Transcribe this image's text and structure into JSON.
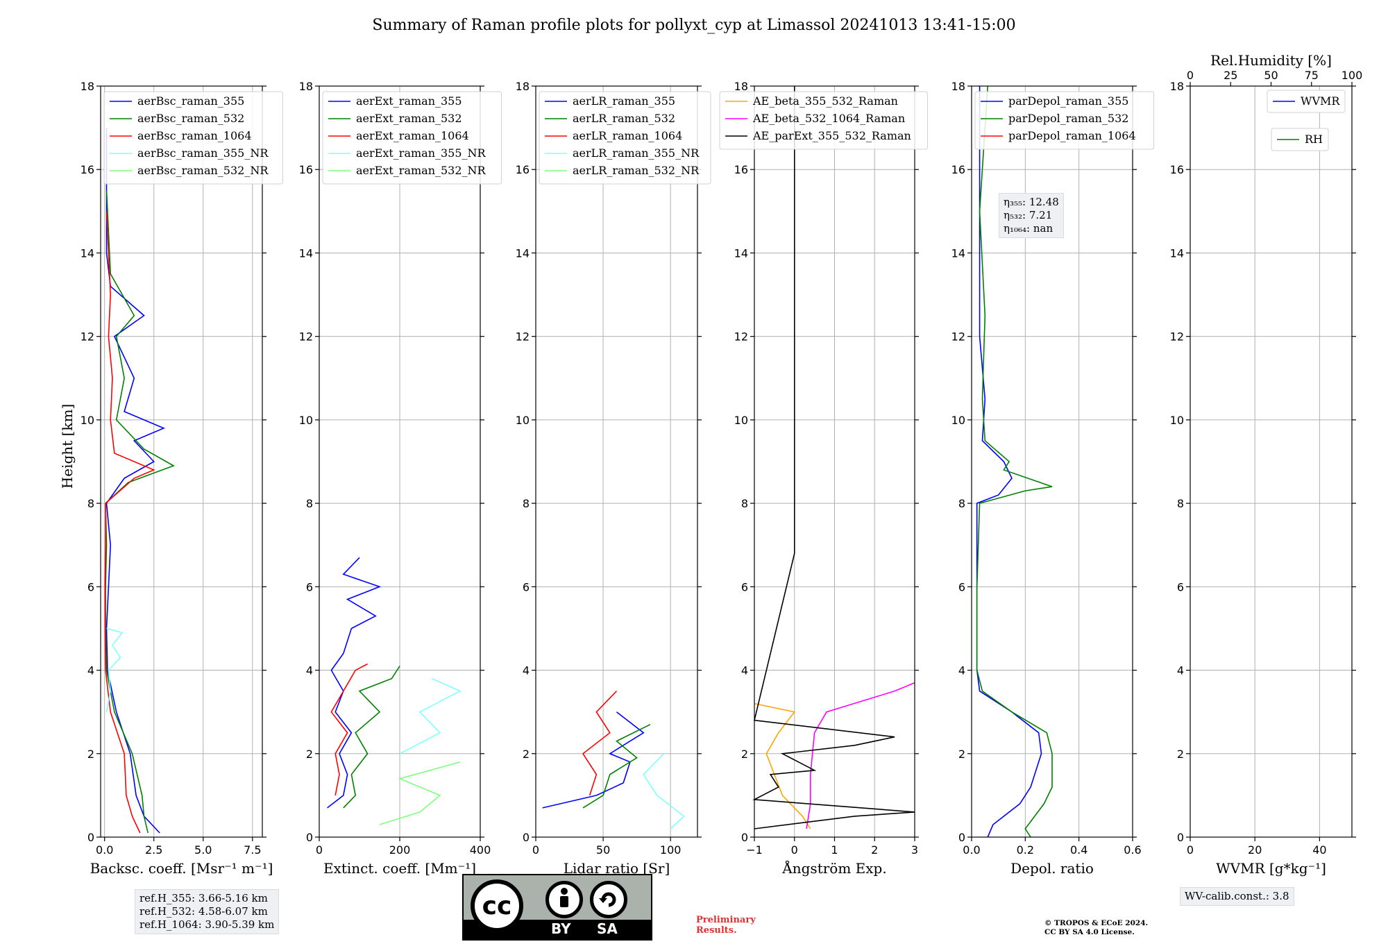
{
  "title": "Summary of Raman profile plots for pollyxt_cyp at Limassol 20241013 13:41-15:00",
  "y_label": "Height [km]",
  "ylim": [
    0,
    18
  ],
  "y_ticks": [
    "0",
    "2",
    "4",
    "6",
    "8",
    "10",
    "12",
    "14",
    "16",
    "18"
  ],
  "panels": [
    {
      "xlabel": "Backsc. coeff. [Msr⁻¹ m⁻¹]",
      "xlim": [
        -0.2,
        8
      ],
      "xticks": [
        0,
        2.5,
        5,
        7.5
      ],
      "xtick_labels": [
        "0.0",
        "2.5",
        "5.0",
        "7.5"
      ],
      "legend": [
        {
          "label": "aerBsc_raman_355",
          "color": "#0000ff"
        },
        {
          "label": "aerBsc_raman_532",
          "color": "#008000"
        },
        {
          "label": "aerBsc_raman_1064",
          "color": "#ff0000"
        },
        {
          "label": "aerBsc_raman_355_NR",
          "color": "#7fffff"
        },
        {
          "label": "aerBsc_raman_532_NR",
          "color": "#7fff7f"
        }
      ]
    },
    {
      "xlabel": "Extinct. coeff. [Mm⁻¹]",
      "xlim": [
        0,
        400
      ],
      "xticks": [
        0,
        200,
        400
      ],
      "xtick_labels": [
        "0",
        "200",
        "400"
      ],
      "legend": [
        {
          "label": "aerExt_raman_355",
          "color": "#0000ff"
        },
        {
          "label": "aerExt_raman_532",
          "color": "#008000"
        },
        {
          "label": "aerExt_raman_1064",
          "color": "#ff0000"
        },
        {
          "label": "aerExt_raman_355_NR",
          "color": "#7fffff"
        },
        {
          "label": "aerExt_raman_532_NR",
          "color": "#7fff7f"
        }
      ]
    },
    {
      "xlabel": "Lidar ratio [Sr]",
      "xlim": [
        0,
        120
      ],
      "xticks": [
        0,
        50,
        100
      ],
      "xtick_labels": [
        "0",
        "50",
        "100"
      ],
      "legend": [
        {
          "label": "aerLR_raman_355",
          "color": "#0000ff"
        },
        {
          "label": "aerLR_raman_532",
          "color": "#008000"
        },
        {
          "label": "aerLR_raman_1064",
          "color": "#ff0000"
        },
        {
          "label": "aerLR_raman_355_NR",
          "color": "#7fffff"
        },
        {
          "label": "aerLR_raman_532_NR",
          "color": "#7fff7f"
        }
      ]
    },
    {
      "xlabel": "Ångström Exp.",
      "xlim": [
        -1,
        3
      ],
      "xticks": [
        -1,
        0,
        1,
        2,
        3
      ],
      "xtick_labels": [
        "−1",
        "0",
        "1",
        "2",
        "3"
      ],
      "legend": [
        {
          "label": "AE_beta_355_532_Raman",
          "color": "#ffa500"
        },
        {
          "label": "AE_beta_532_1064_Raman",
          "color": "#ff00ff"
        },
        {
          "label": "AE_parExt_355_532_Raman",
          "color": "#000000"
        }
      ]
    },
    {
      "xlabel": "Depol. ratio",
      "xlim": [
        0,
        0.6
      ],
      "xticks": [
        0,
        0.2,
        0.4,
        0.6
      ],
      "xtick_labels": [
        "0.0",
        "0.2",
        "0.4",
        "0.6"
      ],
      "legend": [
        {
          "label": "parDepol_raman_355",
          "color": "#0000ff"
        },
        {
          "label": "parDepol_raman_532",
          "color": "#008000"
        },
        {
          "label": "parDepol_raman_1064",
          "color": "#ff0000"
        }
      ]
    },
    {
      "xlabel": "WVMR [g*kg⁻¹]",
      "xlim": [
        0,
        50
      ],
      "xticks": [
        0,
        20,
        40
      ],
      "xtick_labels": [
        "0",
        "20",
        "40"
      ],
      "top_label": "Rel.Humidity [%]",
      "top_xticks": [
        0,
        25,
        50,
        75,
        100
      ],
      "top_xtick_labels": [
        "0",
        "25",
        "50",
        "75",
        "100"
      ],
      "legend": [
        {
          "label": "WVMR",
          "color": "#0000ff"
        },
        {
          "label": "RH",
          "color": "#008000"
        }
      ]
    }
  ],
  "chart_data": {
    "type": "line",
    "title": "Summary of Raman profile plots for pollyxt_cyp at Limassol 20241013 13:41-15:00",
    "ylabel": "Height [km]",
    "ylim": [
      0,
      18
    ],
    "series": [
      {
        "name": "aerBsc_raman_355",
        "panel": 0,
        "color": "#0000ff",
        "points": [
          [
            2.8,
            0.1
          ],
          [
            2.0,
            0.5
          ],
          [
            1.6,
            1.0
          ],
          [
            1.3,
            2.0
          ],
          [
            0.6,
            3.0
          ],
          [
            0.15,
            4.0
          ],
          [
            0.1,
            5.0
          ],
          [
            0.2,
            6.0
          ],
          [
            0.3,
            7.0
          ],
          [
            0.1,
            8.0
          ],
          [
            1.0,
            8.6
          ],
          [
            2.5,
            9.0
          ],
          [
            1.5,
            9.5
          ],
          [
            3.0,
            9.8
          ],
          [
            1.0,
            10.2
          ],
          [
            1.5,
            11.0
          ],
          [
            1.0,
            11.5
          ],
          [
            0.5,
            12.0
          ],
          [
            2.0,
            12.5
          ],
          [
            0.3,
            13.2
          ],
          [
            0.1,
            14.0
          ],
          [
            0.1,
            15.0
          ],
          [
            0.1,
            16.0
          ],
          [
            0.1,
            17.0
          ]
        ]
      },
      {
        "name": "aerBsc_raman_532",
        "panel": 0,
        "color": "#008000",
        "points": [
          [
            2.2,
            0.1
          ],
          [
            2.0,
            0.5
          ],
          [
            1.9,
            1.0
          ],
          [
            1.4,
            2.0
          ],
          [
            0.5,
            3.0
          ],
          [
            0.1,
            4.0
          ],
          [
            0.05,
            5.0
          ],
          [
            0.05,
            6.0
          ],
          [
            0.1,
            7.0
          ],
          [
            0.05,
            8.0
          ],
          [
            1.2,
            8.5
          ],
          [
            3.5,
            8.9
          ],
          [
            2.0,
            9.3
          ],
          [
            0.6,
            10.0
          ],
          [
            1.0,
            11.0
          ],
          [
            0.6,
            12.0
          ],
          [
            1.5,
            12.5
          ],
          [
            0.3,
            13.5
          ],
          [
            0.2,
            14.5
          ],
          [
            0.1,
            15.5
          ]
        ]
      },
      {
        "name": "aerBsc_raman_1064",
        "panel": 0,
        "color": "#ff0000",
        "points": [
          [
            1.8,
            0.1
          ],
          [
            1.4,
            0.5
          ],
          [
            1.1,
            1.0
          ],
          [
            1.0,
            2.0
          ],
          [
            0.3,
            3.0
          ],
          [
            0.05,
            4.0
          ],
          [
            0.03,
            5.0
          ],
          [
            0.02,
            6.0
          ],
          [
            0.05,
            7.0
          ],
          [
            0.05,
            8.0
          ],
          [
            1.5,
            8.6
          ],
          [
            2.5,
            8.8
          ],
          [
            0.5,
            9.2
          ],
          [
            0.3,
            10.0
          ],
          [
            0.4,
            11.0
          ],
          [
            0.2,
            12.0
          ],
          [
            0.3,
            13.0
          ],
          [
            0.1,
            15.0
          ]
        ]
      },
      {
        "name": "aerBsc_raman_355_NR",
        "panel": 0,
        "color": "#7fffff",
        "points": [
          [
            0.1,
            3.0
          ],
          [
            0.3,
            3.5
          ],
          [
            0.2,
            4.0
          ],
          [
            0.8,
            4.3
          ],
          [
            0.4,
            4.6
          ],
          [
            0.9,
            4.9
          ],
          [
            0.1,
            5.0
          ]
        ]
      },
      {
        "name": "aerExt_raman_355",
        "panel": 1,
        "color": "#0000ff",
        "points": [
          [
            20,
            0.7
          ],
          [
            60,
            1.0
          ],
          [
            70,
            1.5
          ],
          [
            50,
            2.0
          ],
          [
            80,
            2.5
          ],
          [
            40,
            3.0
          ],
          [
            60,
            3.5
          ],
          [
            30,
            4.0
          ],
          [
            60,
            4.4
          ],
          [
            80,
            5.0
          ],
          [
            140,
            5.3
          ],
          [
            70,
            5.7
          ],
          [
            150,
            6.0
          ],
          [
            60,
            6.3
          ],
          [
            100,
            6.7
          ]
        ]
      },
      {
        "name": "aerExt_raman_532",
        "panel": 1,
        "color": "#008000",
        "points": [
          [
            60,
            0.7
          ],
          [
            90,
            1.0
          ],
          [
            80,
            1.5
          ],
          [
            120,
            2.0
          ],
          [
            90,
            2.5
          ],
          [
            150,
            3.0
          ],
          [
            100,
            3.5
          ],
          [
            180,
            3.8
          ],
          [
            200,
            4.1
          ]
        ]
      },
      {
        "name": "aerExt_raman_1064",
        "panel": 1,
        "color": "#ff0000",
        "points": [
          [
            40,
            1.0
          ],
          [
            50,
            1.5
          ],
          [
            40,
            2.0
          ],
          [
            70,
            2.5
          ],
          [
            30,
            3.0
          ],
          [
            60,
            3.5
          ],
          [
            90,
            4.0
          ],
          [
            120,
            4.15
          ]
        ]
      },
      {
        "name": "aerExt_raman_355_NR",
        "panel": 1,
        "color": "#7fffff",
        "points": [
          [
            200,
            2.0
          ],
          [
            300,
            2.5
          ],
          [
            250,
            3.0
          ],
          [
            350,
            3.5
          ],
          [
            280,
            3.8
          ]
        ]
      },
      {
        "name": "aerExt_raman_532_NR",
        "panel": 1,
        "color": "#7fff7f",
        "points": [
          [
            150,
            0.3
          ],
          [
            250,
            0.6
          ],
          [
            300,
            1.0
          ],
          [
            200,
            1.4
          ],
          [
            350,
            1.8
          ]
        ]
      },
      {
        "name": "aerLR_raman_355",
        "panel": 2,
        "color": "#0000ff",
        "points": [
          [
            5,
            0.7
          ],
          [
            45,
            1.0
          ],
          [
            65,
            1.3
          ],
          [
            70,
            1.8
          ],
          [
            55,
            2.0
          ],
          [
            80,
            2.5
          ],
          [
            60,
            3.0
          ]
        ]
      },
      {
        "name": "aerLR_raman_532",
        "panel": 2,
        "color": "#008000",
        "points": [
          [
            35,
            0.7
          ],
          [
            50,
            1.0
          ],
          [
            55,
            1.5
          ],
          [
            75,
            1.9
          ],
          [
            60,
            2.3
          ],
          [
            85,
            2.7
          ]
        ]
      },
      {
        "name": "aerLR_raman_1064",
        "panel": 2,
        "color": "#ff0000",
        "points": [
          [
            40,
            1.0
          ],
          [
            45,
            1.5
          ],
          [
            35,
            2.0
          ],
          [
            55,
            2.5
          ],
          [
            45,
            3.0
          ],
          [
            60,
            3.5
          ]
        ]
      },
      {
        "name": "aerLR_raman_355_NR",
        "panel": 2,
        "color": "#7fffff",
        "points": [
          [
            100,
            0.2
          ],
          [
            110,
            0.5
          ],
          [
            90,
            1.0
          ],
          [
            80,
            1.5
          ],
          [
            95,
            2.0
          ]
        ]
      },
      {
        "name": "AE_beta_355_532_Raman",
        "panel": 3,
        "color": "#ffa500",
        "points": [
          [
            0.4,
            0.2
          ],
          [
            0.2,
            0.5
          ],
          [
            -0.3,
            1.0
          ],
          [
            -0.7,
            2.0
          ],
          [
            -0.4,
            2.5
          ],
          [
            0.0,
            3.0
          ],
          [
            -1.0,
            3.2
          ]
        ]
      },
      {
        "name": "AE_beta_532_1064_Raman",
        "panel": 3,
        "color": "#ff00ff",
        "points": [
          [
            0.3,
            0.2
          ],
          [
            0.4,
            0.8
          ],
          [
            0.4,
            1.5
          ],
          [
            0.5,
            2.5
          ],
          [
            0.8,
            3.0
          ],
          [
            2.5,
            3.5
          ],
          [
            3.0,
            3.7
          ]
        ]
      },
      {
        "name": "AE_parExt_355_532_Raman",
        "panel": 3,
        "color": "#000000",
        "points": [
          [
            -1.0,
            0.2
          ],
          [
            1.5,
            0.5
          ],
          [
            3.0,
            0.6
          ],
          [
            -1.0,
            0.9
          ],
          [
            -0.4,
            1.2
          ],
          [
            -0.6,
            1.5
          ],
          [
            0.5,
            1.6
          ],
          [
            -0.3,
            2.0
          ],
          [
            1.5,
            2.2
          ],
          [
            2.5,
            2.4
          ],
          [
            -1.0,
            2.8
          ],
          [
            0.0,
            6.8
          ],
          [
            0.0,
            18.0
          ]
        ]
      },
      {
        "name": "parDepol_raman_355",
        "panel": 4,
        "color": "#0000ff",
        "points": [
          [
            0.06,
            0.0
          ],
          [
            0.08,
            0.3
          ],
          [
            0.18,
            0.8
          ],
          [
            0.22,
            1.2
          ],
          [
            0.24,
            1.6
          ],
          [
            0.26,
            2.0
          ],
          [
            0.25,
            2.5
          ],
          [
            0.15,
            3.0
          ],
          [
            0.03,
            3.5
          ],
          [
            0.02,
            4.0
          ],
          [
            0.02,
            6.0
          ],
          [
            0.02,
            8.0
          ],
          [
            0.1,
            8.2
          ],
          [
            0.15,
            8.6
          ],
          [
            0.12,
            9.0
          ],
          [
            0.04,
            9.5
          ],
          [
            0.05,
            10.5
          ],
          [
            0.03,
            12.0
          ],
          [
            0.03,
            14.0
          ],
          [
            0.03,
            16.0
          ],
          [
            0.03,
            18.0
          ]
        ]
      },
      {
        "name": "parDepol_raman_532",
        "panel": 4,
        "color": "#008000",
        "points": [
          [
            0.22,
            0.0
          ],
          [
            0.2,
            0.2
          ],
          [
            0.27,
            0.8
          ],
          [
            0.3,
            1.2
          ],
          [
            0.3,
            2.0
          ],
          [
            0.28,
            2.5
          ],
          [
            0.15,
            3.0
          ],
          [
            0.04,
            3.5
          ],
          [
            0.02,
            4.0
          ],
          [
            0.02,
            6.0
          ],
          [
            0.03,
            8.0
          ],
          [
            0.2,
            8.3
          ],
          [
            0.3,
            8.4
          ],
          [
            0.12,
            8.8
          ],
          [
            0.14,
            9.0
          ],
          [
            0.05,
            9.5
          ],
          [
            0.04,
            10.5
          ],
          [
            0.05,
            12.5
          ],
          [
            0.03,
            15.0
          ],
          [
            0.06,
            18.0
          ]
        ]
      },
      {
        "name": "WVMR",
        "panel": 5,
        "color": "#0000ff",
        "points": []
      },
      {
        "name": "RH",
        "panel": 5,
        "color": "#008000",
        "points": []
      }
    ]
  },
  "eta_box": {
    "eta355": "η₃₅₅: 12.48",
    "eta532": "η₅₃₂: 7.21",
    "eta1064": "η₁₀₆₄: nan"
  },
  "ref_box": {
    "h355": "ref.H_355: 3.66-5.16 km",
    "h532": "ref.H_532: 4.58-6.07 km",
    "h1064": "ref.H_1064: 3.90-5.39 km"
  },
  "wv_calib": "WV-calib.const.: 3.8",
  "preliminary": {
    "line1": "Preliminary",
    "line2": "Results."
  },
  "copyright": {
    "line1": "© TROPOS & ECoE 2024.",
    "line2": "CC BY SA 4.0 License."
  },
  "cc_badge": {
    "cc": "cc",
    "by": "BY",
    "sa": "SA"
  },
  "colors": {
    "grid": "#b0b0b0",
    "blue": "#0000ff",
    "green": "#008000",
    "red": "#ff0000",
    "cyan": "#7fffff",
    "lightgreen": "#7fff7f",
    "orange": "#ffa500",
    "magenta": "#ff00ff"
  }
}
